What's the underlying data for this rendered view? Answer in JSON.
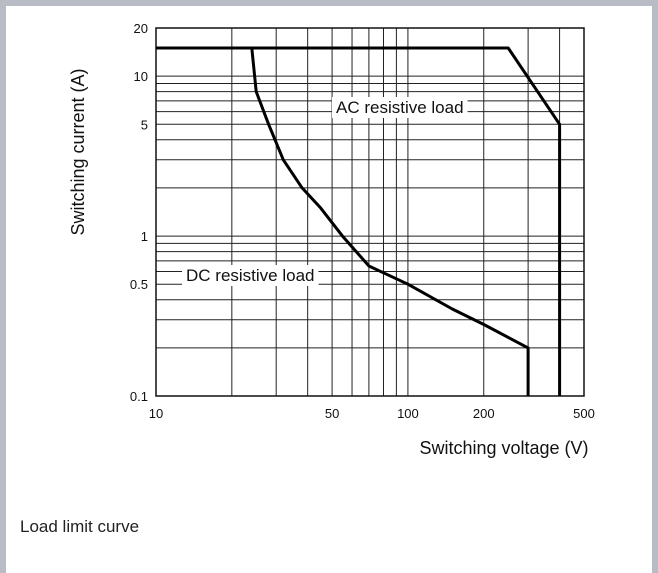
{
  "chart_data": {
    "type": "line",
    "xscale": "log",
    "yscale": "log",
    "xlim": [
      10,
      500
    ],
    "ylim": [
      0.1,
      20
    ],
    "xlabel": "Switching voltage (V)",
    "ylabel": "Switching current (A)",
    "x_ticks": [
      10,
      50,
      100,
      200,
      500
    ],
    "y_ticks": [
      0.1,
      0.5,
      1,
      5,
      10,
      20
    ],
    "grid": true,
    "series": [
      {
        "name": "AC resistive load",
        "x": [
          10,
          250,
          400,
          400
        ],
        "y": [
          15,
          15,
          5,
          0.1
        ]
      },
      {
        "name": "DC resistive load",
        "x": [
          24,
          25,
          28,
          32,
          38,
          45,
          55,
          70,
          100,
          150,
          200,
          300,
          300
        ],
        "y": [
          15,
          8,
          5,
          3,
          2,
          1.5,
          1,
          0.65,
          0.5,
          0.35,
          0.28,
          0.2,
          0.1
        ]
      }
    ]
  },
  "caption": "Load limit curve"
}
